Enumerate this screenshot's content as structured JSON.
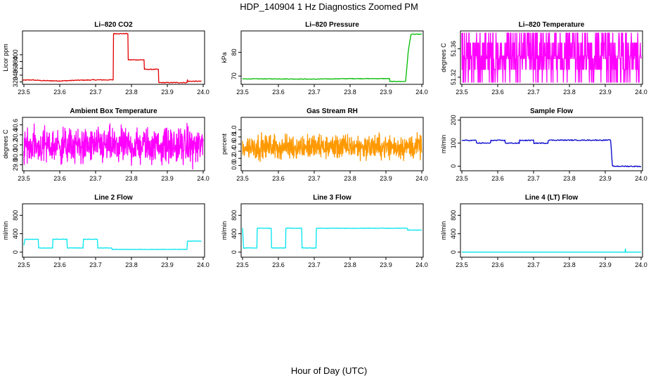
{
  "figure": {
    "title": "HDP_140904  1 Hz Diagnostics Zoomed PM",
    "xlabel": "Hour of Day (UTC)"
  },
  "chart_data": [
    {
      "type": "line",
      "title": "Li–820 CO2",
      "ylabel": "Licor ppm",
      "color": "#e00000",
      "xlim": [
        23.5,
        24.0
      ],
      "ylim": [
        313,
        470
      ],
      "xticks": [
        "23.5",
        "23.6",
        "23.7",
        "23.8",
        "23.9",
        "24.0"
      ],
      "yticks": [
        320,
        340,
        360,
        380,
        400
      ],
      "noise": 1.2,
      "points": [
        [
          23.495,
          325
        ],
        [
          23.52,
          326
        ],
        [
          23.55,
          324
        ],
        [
          23.6,
          323
        ],
        [
          23.65,
          325
        ],
        [
          23.7,
          326
        ],
        [
          23.749,
          326
        ],
        [
          23.75,
          462
        ],
        [
          23.79,
          462
        ],
        [
          23.791,
          385
        ],
        [
          23.835,
          385
        ],
        [
          23.836,
          357
        ],
        [
          23.875,
          357
        ],
        [
          23.876,
          318
        ],
        [
          23.955,
          318
        ],
        [
          23.956,
          326
        ],
        [
          23.957,
          322
        ],
        [
          23.995,
          322
        ]
      ]
    },
    {
      "type": "line",
      "title": "Li–820 Pressure",
      "ylabel": "kPa",
      "color": "#00bb00",
      "xlim": [
        23.5,
        24.0
      ],
      "ylim": [
        66.5,
        89
      ],
      "xticks": [
        "23.5",
        "23.6",
        "23.7",
        "23.8",
        "23.9",
        "24.0"
      ],
      "yticks": [
        70,
        80
      ],
      "noise": 0.12,
      "points": [
        [
          23.5,
          68.8
        ],
        [
          23.6,
          68.8
        ],
        [
          23.7,
          68.7
        ],
        [
          23.8,
          68.9
        ],
        [
          23.91,
          68.9
        ],
        [
          23.911,
          67.7
        ],
        [
          23.955,
          67.7
        ],
        [
          23.962,
          80
        ],
        [
          23.968,
          86
        ],
        [
          23.97,
          87.6
        ],
        [
          24.0,
          87.6
        ]
      ]
    },
    {
      "type": "line",
      "title": "Li–820 Temperature",
      "ylabel": "degrees C",
      "color": "#ff00ff",
      "xlim": [
        23.5,
        24.0
      ],
      "ylim": [
        51.31,
        51.385
      ],
      "xticks": [
        "23.5",
        "23.6",
        "23.7",
        "23.8",
        "23.9",
        "24.0"
      ],
      "yticks": [
        51.32,
        51.36
      ],
      "quantized": [
        51.313,
        51.331,
        51.35,
        51.368,
        51.382
      ],
      "quantized_center": 51.346
    },
    {
      "type": "line",
      "title": "Ambient Box Temperature",
      "ylabel": "degrees C",
      "color": "#ff00ff",
      "xlim": [
        23.5,
        24.0
      ],
      "ylim": [
        29.68,
        30.75
      ],
      "xticks": [
        "23.5",
        "23.6",
        "23.7",
        "23.8",
        "23.9",
        "24.0"
      ],
      "yticks": [
        "29.8",
        "30.0",
        "30.2",
        "30.4",
        "30.6"
      ],
      "noise_center": 30.18,
      "noise_amp": 0.52
    },
    {
      "type": "line",
      "title": "Gas Stream RH",
      "ylabel": "percent",
      "color": "#ff9900",
      "xlim": [
        23.5,
        24.0
      ],
      "ylim": [
        -0.15,
        1.35
      ],
      "xticks": [
        "23.5",
        "23.6",
        "23.7",
        "23.8",
        "23.9",
        "24.0"
      ],
      "yticks": [
        "0.0",
        "0.2",
        "0.4",
        "0.6",
        "0.8",
        "1.0"
      ],
      "noise_center": 0.52,
      "noise_amp": 0.5
    },
    {
      "type": "line",
      "title": "Sample Flow",
      "ylabel": "ml/min",
      "color": "#0000cc",
      "xlim": [
        23.5,
        24.0
      ],
      "ylim": [
        -20,
        212
      ],
      "xticks": [
        "23.5",
        "23.6",
        "23.7",
        "23.8",
        "23.9",
        "24.0"
      ],
      "yticks": [
        0,
        100,
        200
      ],
      "noise": 2,
      "points": [
        [
          23.5,
          112
        ],
        [
          23.54,
          112
        ],
        [
          23.541,
          100
        ],
        [
          23.58,
          100
        ],
        [
          23.581,
          112
        ],
        [
          23.62,
          112
        ],
        [
          23.621,
          100
        ],
        [
          23.66,
          100
        ],
        [
          23.661,
          112
        ],
        [
          23.7,
          112
        ],
        [
          23.701,
          100
        ],
        [
          23.74,
          100
        ],
        [
          23.741,
          113
        ],
        [
          23.915,
          113
        ],
        [
          23.92,
          0
        ],
        [
          24.0,
          -1
        ]
      ]
    },
    {
      "type": "line",
      "title": "Line 2 Flow",
      "ylabel": "ml/min",
      "color": "#00e5ee",
      "xlim": [
        23.5,
        24.0
      ],
      "ylim": [
        -110,
        1050
      ],
      "xticks": [
        "23.5",
        "23.6",
        "23.7",
        "23.8",
        "23.9",
        "24.0"
      ],
      "yticks": [
        0,
        400,
        800
      ],
      "noise": 4,
      "points": [
        [
          23.5,
          150
        ],
        [
          23.503,
          280
        ],
        [
          23.54,
          280
        ],
        [
          23.541,
          90
        ],
        [
          23.58,
          90
        ],
        [
          23.581,
          280
        ],
        [
          23.62,
          280
        ],
        [
          23.621,
          90
        ],
        [
          23.665,
          90
        ],
        [
          23.666,
          280
        ],
        [
          23.705,
          280
        ],
        [
          23.706,
          90
        ],
        [
          23.745,
          90
        ],
        [
          23.746,
          60
        ],
        [
          23.955,
          60
        ],
        [
          23.956,
          240
        ],
        [
          23.995,
          240
        ]
      ]
    },
    {
      "type": "line",
      "title": "Line 3 Flow",
      "ylabel": "ml/min",
      "color": "#00e5ee",
      "xlim": [
        23.5,
        24.0
      ],
      "ylim": [
        -110,
        1050
      ],
      "xticks": [
        "23.5",
        "23.6",
        "23.7",
        "23.8",
        "23.9",
        "24.0"
      ],
      "yticks": [
        0,
        400,
        800
      ],
      "noise": 5,
      "points": [
        [
          23.5,
          520
        ],
        [
          23.503,
          90
        ],
        [
          23.54,
          90
        ],
        [
          23.541,
          520
        ],
        [
          23.58,
          520
        ],
        [
          23.581,
          90
        ],
        [
          23.62,
          90
        ],
        [
          23.621,
          520
        ],
        [
          23.665,
          520
        ],
        [
          23.666,
          90
        ],
        [
          23.705,
          90
        ],
        [
          23.706,
          520
        ],
        [
          23.96,
          520
        ],
        [
          23.961,
          480
        ],
        [
          24.0,
          480
        ]
      ]
    },
    {
      "type": "line",
      "title": "Line 4 (LT) Flow",
      "ylabel": "ml/min",
      "color": "#00e5ee",
      "xlim": [
        23.5,
        24.0
      ],
      "ylim": [
        -110,
        1050
      ],
      "xticks": [
        "23.5",
        "23.6",
        "23.7",
        "23.8",
        "23.9",
        "24.0"
      ],
      "yticks": [
        0,
        400,
        800
      ],
      "noise": 0,
      "points": [
        [
          23.5,
          0
        ],
        [
          23.955,
          0
        ],
        [
          23.956,
          70
        ],
        [
          23.957,
          0
        ],
        [
          24.0,
          0
        ]
      ]
    }
  ]
}
